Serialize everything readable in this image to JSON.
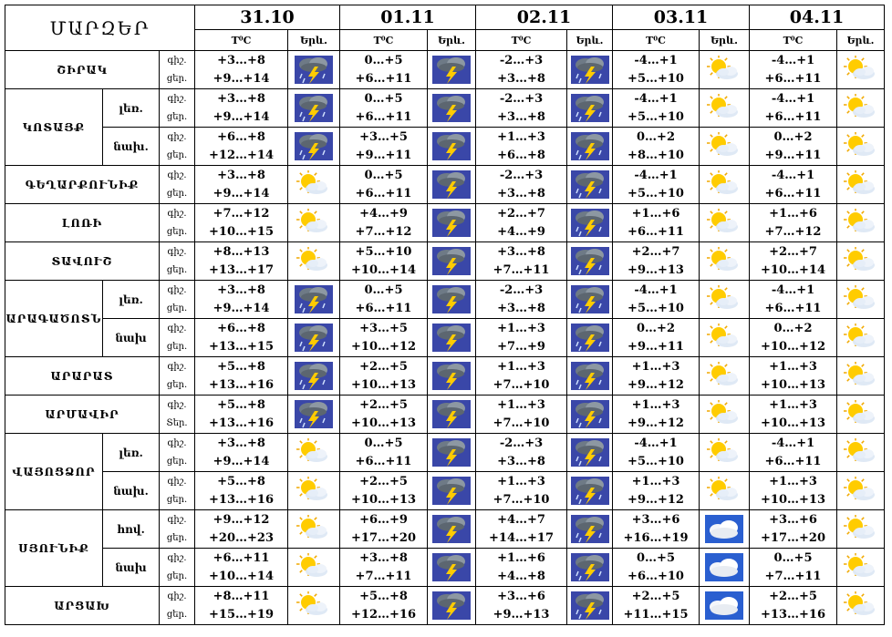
{
  "header": {
    "title": "ՄԱՐԶԵՐ",
    "dates": [
      "31.10",
      "01.11",
      "02.11",
      "03.11",
      "04.11"
    ],
    "temp_label": "T⁰C",
    "weather_label": "Երև."
  },
  "labels": {
    "day": "ցեր.",
    "night": "գիշ.",
    "day_alt": "Տեր."
  },
  "colors": {
    "storm_bg": "#3a47a8",
    "sun": "#ffcc00",
    "cloud": "#ffffff",
    "sky": "#2a5fd0"
  },
  "rows": [
    {
      "region": "ՇԻՐԱԿ",
      "sub": "",
      "day_label": "ցեր.",
      "cells": [
        {
          "night": "+3…+8",
          "day": "+9…+14",
          "icon": "storm-large-icon"
        },
        {
          "night": "0…+5",
          "day": "+6…+11",
          "icon": "storm-icon"
        },
        {
          "night": "-2…+3",
          "day": "+3…+8",
          "icon": "storm-rain-icon"
        },
        {
          "night": "-4…+1",
          "day": "+5…+10",
          "icon": "sun-cloud-icon"
        },
        {
          "night": "-4…+1",
          "day": "+6…+11",
          "icon": "sun-cloud-icon"
        }
      ]
    },
    {
      "region": "ԿՈՏԱՅՔ",
      "sub": "լեռ.",
      "day_label": "ցեր.",
      "cells": [
        {
          "night": "+3…+8",
          "day": "+9…+14",
          "icon": "storm-large-icon"
        },
        {
          "night": "0…+5",
          "day": "+6…+11",
          "icon": "storm-icon"
        },
        {
          "night": "-2…+3",
          "day": "+3…+8",
          "icon": "storm-rain-icon"
        },
        {
          "night": "-4…+1",
          "day": "+5…+10",
          "icon": "sun-cloud-icon"
        },
        {
          "night": "-4…+1",
          "day": "+6…+11",
          "icon": "sun-cloud-icon"
        }
      ]
    },
    {
      "region": "",
      "sub": "նախ.",
      "day_label": "ցեր.",
      "cells": [
        {
          "night": "+6…+8",
          "day": "+12…+14",
          "icon": "storm-large-icon"
        },
        {
          "night": "+3…+5",
          "day": "+9…+11",
          "icon": "storm-icon"
        },
        {
          "night": "+1…+3",
          "day": "+6…+8",
          "icon": "storm-rain-icon"
        },
        {
          "night": "0…+2",
          "day": "+8…+10",
          "icon": "sun-cloud-icon"
        },
        {
          "night": "0…+2",
          "day": "+9…+11",
          "icon": "sun-cloud-icon"
        }
      ]
    },
    {
      "region": "ԳԵՂԱՐՔՈՒՆԻՔ",
      "sub": "",
      "day_label": "ցեր.",
      "cells": [
        {
          "night": "+3…+8",
          "day": "+9…+14",
          "icon": "sun-cloud-icon"
        },
        {
          "night": "0…+5",
          "day": "+6…+11",
          "icon": "storm-icon"
        },
        {
          "night": "-2…+3",
          "day": "+3…+8",
          "icon": "storm-rain-icon"
        },
        {
          "night": "-4…+1",
          "day": "+5…+10",
          "icon": "sun-cloud-icon"
        },
        {
          "night": "-4…+1",
          "day": "+6…+11",
          "icon": "sun-cloud-icon"
        }
      ]
    },
    {
      "region": "ԼՈՌԻ",
      "sub": "",
      "day_label": "ցեր.",
      "cells": [
        {
          "night": "+7…+12",
          "day": "+10…+15",
          "icon": "sun-cloud-icon"
        },
        {
          "night": "+4…+9",
          "day": "+7…+12",
          "icon": "storm-icon"
        },
        {
          "night": "+2…+7",
          "day": "+4…+9",
          "icon": "storm-rain-icon"
        },
        {
          "night": "+1…+6",
          "day": "+6…+11",
          "icon": "sun-cloud-icon"
        },
        {
          "night": "+1…+6",
          "day": "+7…+12",
          "icon": "sun-cloud-icon"
        }
      ]
    },
    {
      "region": "ՏԱՎՈՒՇ",
      "sub": "",
      "day_label": "ցեր.",
      "cells": [
        {
          "night": "+8…+13",
          "day": "+13…+17",
          "icon": "sun-cloud-icon"
        },
        {
          "night": "+5…+10",
          "day": "+10…+14",
          "icon": "storm-icon"
        },
        {
          "night": "+3…+8",
          "day": "+7…+11",
          "icon": "storm-rain-icon"
        },
        {
          "night": "+2…+7",
          "day": "+9…+13",
          "icon": "sun-cloud-icon"
        },
        {
          "night": "+2…+7",
          "day": "+10…+14",
          "icon": "sun-cloud-icon"
        }
      ]
    },
    {
      "region": "ԱՐԱԳԱԾՈՏՆ",
      "sub": "լեռ.",
      "day_label": "ցեր.",
      "cells": [
        {
          "night": "+3…+8",
          "day": "+9…+14",
          "icon": "storm-large-icon"
        },
        {
          "night": "0…+5",
          "day": "+6…+11",
          "icon": "storm-icon"
        },
        {
          "night": "-2…+3",
          "day": "+3…+8",
          "icon": "storm-rain-icon"
        },
        {
          "night": "-4…+1",
          "day": "+5…+10",
          "icon": "sun-cloud-icon"
        },
        {
          "night": "-4…+1",
          "day": "+6…+11",
          "icon": "sun-cloud-icon"
        }
      ]
    },
    {
      "region": "",
      "sub": "նախ",
      "day_label": "ցեր.",
      "cells": [
        {
          "night": "+6…+8",
          "day": "+13…+15",
          "icon": "storm-large-icon"
        },
        {
          "night": "+3…+5",
          "day": "+10…+12",
          "icon": "storm-icon"
        },
        {
          "night": "+1…+3",
          "day": "+7…+9",
          "icon": "storm-rain-icon"
        },
        {
          "night": "0…+2",
          "day": "+9…+11",
          "icon": "sun-cloud-icon"
        },
        {
          "night": "0…+2",
          "day": "+10…+12",
          "icon": "sun-cloud-icon"
        }
      ]
    },
    {
      "region": "ԱՐԱՐԱՏ",
      "sub": "",
      "day_label": "ցեր.",
      "cells": [
        {
          "night": "+5…+8",
          "day": "+13…+16",
          "icon": "storm-large-icon"
        },
        {
          "night": "+2…+5",
          "day": "+10…+13",
          "icon": "storm-icon"
        },
        {
          "night": "+1…+3",
          "day": "+7…+10",
          "icon": "storm-rain-icon"
        },
        {
          "night": "+1…+3",
          "day": "+9…+12",
          "icon": "sun-cloud-icon"
        },
        {
          "night": "+1…+3",
          "day": "+10…+13",
          "icon": "sun-cloud-icon"
        }
      ]
    },
    {
      "region": "ԱՐՄԱՎԻՐ",
      "sub": "",
      "day_label": "Տեր.",
      "cells": [
        {
          "night": "+5…+8",
          "day": "+13…+16",
          "icon": "storm-large-icon"
        },
        {
          "night": "+2…+5",
          "day": "+10…+13",
          "icon": "storm-icon"
        },
        {
          "night": "+1…+3",
          "day": "+7…+10",
          "icon": "storm-rain-icon"
        },
        {
          "night": "+1…+3",
          "day": "+9…+12",
          "icon": "sun-cloud-icon"
        },
        {
          "night": "+1…+3",
          "day": "+10…+13",
          "icon": "sun-cloud-icon"
        }
      ]
    },
    {
      "region": "ՎԱՅՈՑՁՈՐ",
      "sub": "լեռ.",
      "day_label": "ցեր.",
      "cells": [
        {
          "night": "+3…+8",
          "day": "+9…+14",
          "icon": "sun-cloud-icon"
        },
        {
          "night": "0…+5",
          "day": "+6…+11",
          "icon": "storm-icon"
        },
        {
          "night": "-2…+3",
          "day": "+3…+8",
          "icon": "storm-rain-icon"
        },
        {
          "night": "-4…+1",
          "day": "+5…+10",
          "icon": "sun-cloud-icon"
        },
        {
          "night": "-4…+1",
          "day": "+6…+11",
          "icon": "sun-cloud-icon"
        }
      ]
    },
    {
      "region": "",
      "sub": "նախ.",
      "day_label": "ցեր.",
      "cells": [
        {
          "night": "+5…+8",
          "day": "+13…+16",
          "icon": "sun-cloud-icon"
        },
        {
          "night": "+2…+5",
          "day": "+10…+13",
          "icon": "storm-icon"
        },
        {
          "night": "+1…+3",
          "day": "+7…+10",
          "icon": "storm-rain-icon"
        },
        {
          "night": "+1…+3",
          "day": "+9…+12",
          "icon": "sun-cloud-icon"
        },
        {
          "night": "+1…+3",
          "day": "+10…+13",
          "icon": "sun-cloud-icon"
        }
      ]
    },
    {
      "region": "ՍՅՈՒՆԻՔ",
      "sub": "հով.",
      "day_label": "ցեր.",
      "cells": [
        {
          "night": "+9…+12",
          "day": "+20…+23",
          "icon": "sun-cloud-icon"
        },
        {
          "night": "+6…+9",
          "day": "+17…+20",
          "icon": "storm-icon"
        },
        {
          "night": "+4…+7",
          "day": "+14…+17",
          "icon": "storm-rain-icon"
        },
        {
          "night": "+3…+6",
          "day": "+16…+19",
          "icon": "cloud-icon"
        },
        {
          "night": "+3…+6",
          "day": "+17…+20",
          "icon": "sun-cloud-icon"
        }
      ]
    },
    {
      "region": "",
      "sub": "նախ",
      "day_label": "ցեր.",
      "cells": [
        {
          "night": "+6…+11",
          "day": "+10…+14",
          "icon": "sun-cloud-icon"
        },
        {
          "night": "+3…+8",
          "day": "+7…+11",
          "icon": "storm-icon"
        },
        {
          "night": "+1…+6",
          "day": "+4…+8",
          "icon": "storm-rain-icon"
        },
        {
          "night": "0…+5",
          "day": "+6…+10",
          "icon": "cloud-icon"
        },
        {
          "night": "0…+5",
          "day": "+7…+11",
          "icon": "sun-cloud-icon"
        }
      ]
    },
    {
      "region": "ԱՐՑԱԽ",
      "sub": "",
      "day_label": "ցեր.",
      "cells": [
        {
          "night": "+8…+11",
          "day": "+15…+19",
          "icon": "sun-cloud-icon"
        },
        {
          "night": "+5…+8",
          "day": "+12…+16",
          "icon": "storm-icon"
        },
        {
          "night": "+3…+6",
          "day": "+9…+13",
          "icon": "storm-rain-icon"
        },
        {
          "night": "+2…+5",
          "day": "+11…+15",
          "icon": "cloud-icon"
        },
        {
          "night": "+2…+5",
          "day": "+13…+16",
          "icon": "sun-cloud-icon"
        }
      ]
    }
  ]
}
